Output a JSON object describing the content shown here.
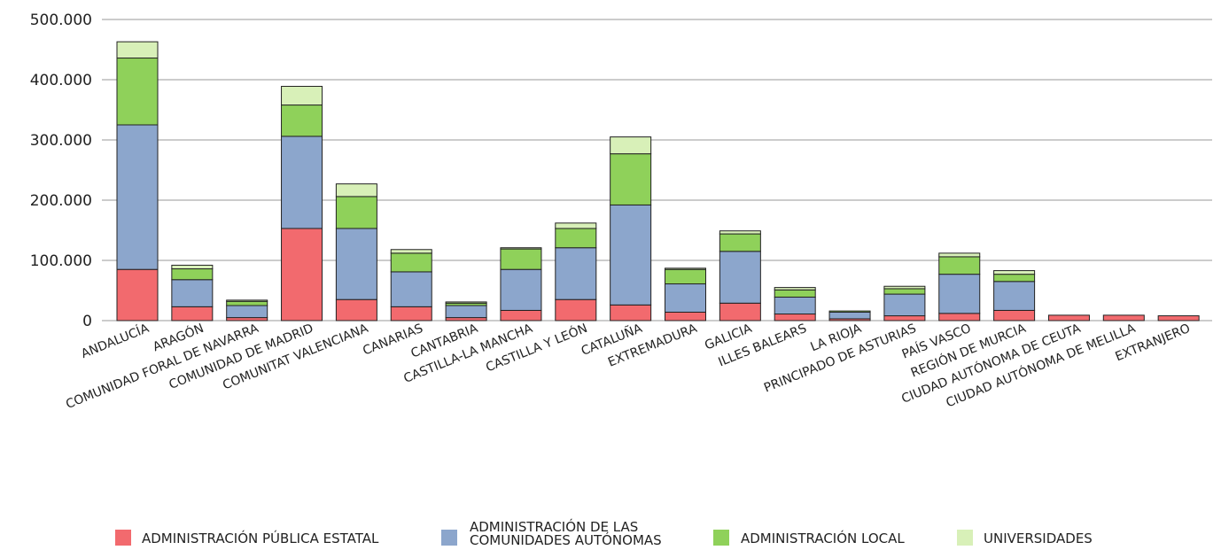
{
  "chart_data": {
    "type": "bar",
    "stacked": true,
    "title": "",
    "xlabel": "",
    "ylabel": "",
    "ylim": [
      0,
      500000
    ],
    "yticks": [
      0,
      100000,
      200000,
      300000,
      400000,
      500000
    ],
    "ytick_labels": [
      "0",
      "100.000",
      "200.000",
      "300.000",
      "400.000",
      "500.000"
    ],
    "grid": true,
    "legend_position": "bottom",
    "categories": [
      "ANDALUCÍA",
      "ARAGÓN",
      "COMUNIDAD FORAL DE NAVARRA",
      "COMUNIDAD DE MADRID",
      "COMUNITAT VALENCIANA",
      "CANARIAS",
      "CANTABRIA",
      "CASTILLA-LA MANCHA",
      "CASTILLA Y LEÓN",
      "CATALUÑA",
      "EXTREMADURA",
      "GALICIA",
      "ILLES BALEARS",
      "LA RIOJA",
      "PRINCIPADO DE ASTURIAS",
      "PAÍS VASCO",
      "REGIÓN DE MURCIA",
      "CIUDAD AUTÓNOMA DE CEUTA",
      "CIUDAD AUTÓNOMA DE MELILLA",
      "EXTRANJERO"
    ],
    "series": [
      {
        "name": "ADMINISTRACIÓN PÚBLICA ESTATAL",
        "color": "#f26a6e",
        "values": [
          85000,
          23000,
          5000,
          153000,
          35000,
          23000,
          5000,
          17000,
          35000,
          26000,
          14000,
          29000,
          11000,
          3000,
          8000,
          12000,
          17000,
          9000,
          9000,
          8000
        ]
      },
      {
        "name_lines": [
          "ADMINISTRACIÓN DE LAS",
          "COMUNIDADES AUTÓNOMAS"
        ],
        "color": "#8ca6cc",
        "values": [
          240000,
          45000,
          20000,
          153000,
          118000,
          58000,
          20000,
          68000,
          86000,
          166000,
          47000,
          86000,
          28000,
          11000,
          36000,
          65000,
          48000,
          0,
          0,
          0
        ]
      },
      {
        "name": "ADMINISTRACIÓN LOCAL",
        "color": "#8fd15a",
        "values": [
          111000,
          18000,
          7000,
          52000,
          53000,
          31000,
          4000,
          34000,
          32000,
          85000,
          24000,
          29000,
          12000,
          2000,
          9000,
          29000,
          12000,
          0,
          0,
          0
        ]
      },
      {
        "name": "UNIVERSIDADES",
        "color": "#d8f0b8",
        "values": [
          27000,
          6000,
          2000,
          31000,
          21000,
          6000,
          2000,
          2000,
          9000,
          28000,
          2000,
          5000,
          4000,
          0,
          4000,
          6000,
          6000,
          0,
          0,
          0
        ]
      }
    ]
  }
}
